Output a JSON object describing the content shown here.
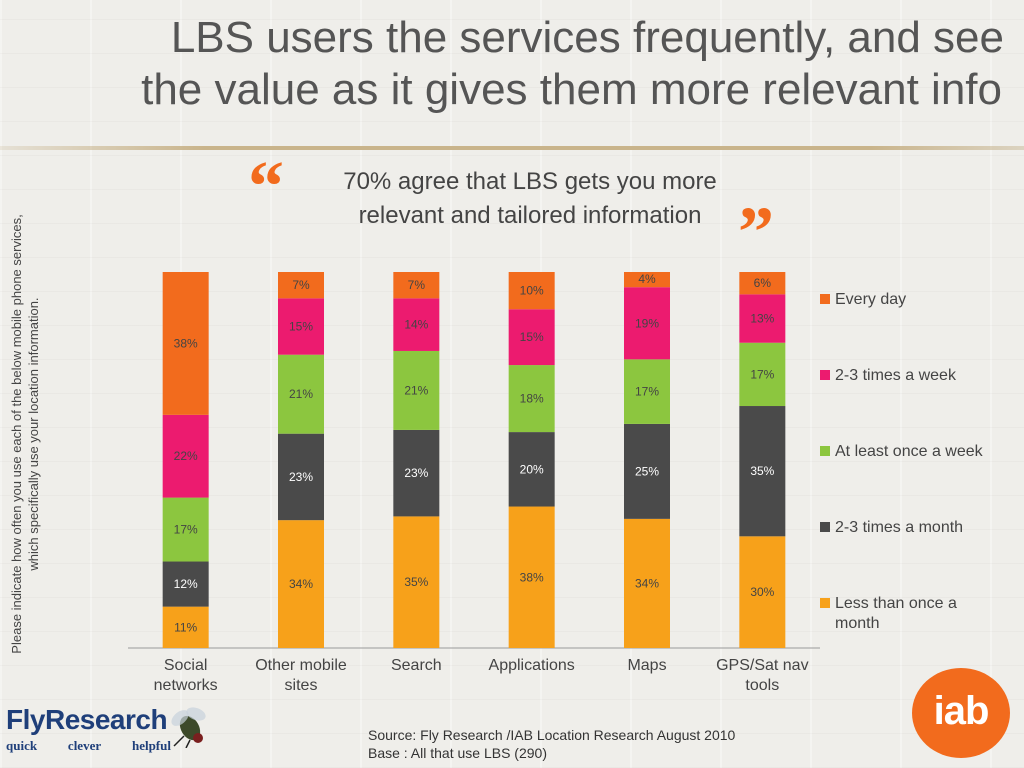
{
  "title": {
    "line1": "LBS users the services frequently, and see",
    "line2": "the value as it gives them more relevant info"
  },
  "quote": {
    "open_mark": "“",
    "close_mark": "”",
    "text": "70%  agree that LBS gets you more relevant and tailored information"
  },
  "chart_data": {
    "type": "bar",
    "stacked": true,
    "percent_stacked": true,
    "ylabel": "Please indicate how often you use each of the below mobile phone services, which specifically use your location information.",
    "categories": [
      "Social networks",
      "Other mobile sites",
      "Search",
      "Applications",
      "Maps",
      "GPS/Sat nav tools"
    ],
    "series": [
      {
        "name": "Less than once a month",
        "color": "#f7a11a",
        "values": [
          11,
          34,
          35,
          38,
          34,
          30
        ]
      },
      {
        "name": "2-3 times a month",
        "color": "#4a4a4a",
        "values": [
          12,
          23,
          23,
          20,
          25,
          35
        ]
      },
      {
        "name": "At least once a week",
        "color": "#8cc63f",
        "values": [
          17,
          21,
          21,
          18,
          17,
          17
        ]
      },
      {
        "name": "2-3 times a week",
        "color": "#ec1b6f",
        "values": [
          22,
          15,
          14,
          15,
          19,
          13
        ]
      },
      {
        "name": "Every day",
        "color": "#f26b1d",
        "values": [
          38,
          7,
          7,
          10,
          4,
          6
        ]
      }
    ],
    "labels": [
      [
        "11%",
        "34%",
        "35%",
        "38%",
        "34%",
        "30%"
      ],
      [
        "12%",
        "23%",
        "23%",
        "20%",
        "25%",
        "35%"
      ],
      [
        "17%",
        "21%",
        "21%",
        "18%",
        "17%",
        "17%"
      ],
      [
        "22%",
        "15%",
        "14%",
        "15%",
        "19%",
        "13%"
      ],
      [
        "38%",
        "7%",
        "7%",
        "10%",
        "4%",
        "6%"
      ]
    ],
    "legend_order": [
      "Every day",
      "2-3 times a week",
      "At least once a week",
      "2-3 times a month",
      "Less than once a month"
    ],
    "legend_position": "right",
    "grid": false
  },
  "footer": {
    "logo_fly": "Fly",
    "logo_research": "Research",
    "tag_words": [
      "quick",
      "clever",
      "helpful"
    ],
    "source_line1": "Source: Fly Research /IAB Location Research  August 2010",
    "source_line2": "Base : All that use LBS (290)",
    "iab_logo": "iab"
  },
  "colors": {
    "accent": "#f26b1d",
    "title": "#555555",
    "brand_blue": "#1f3f7a"
  }
}
